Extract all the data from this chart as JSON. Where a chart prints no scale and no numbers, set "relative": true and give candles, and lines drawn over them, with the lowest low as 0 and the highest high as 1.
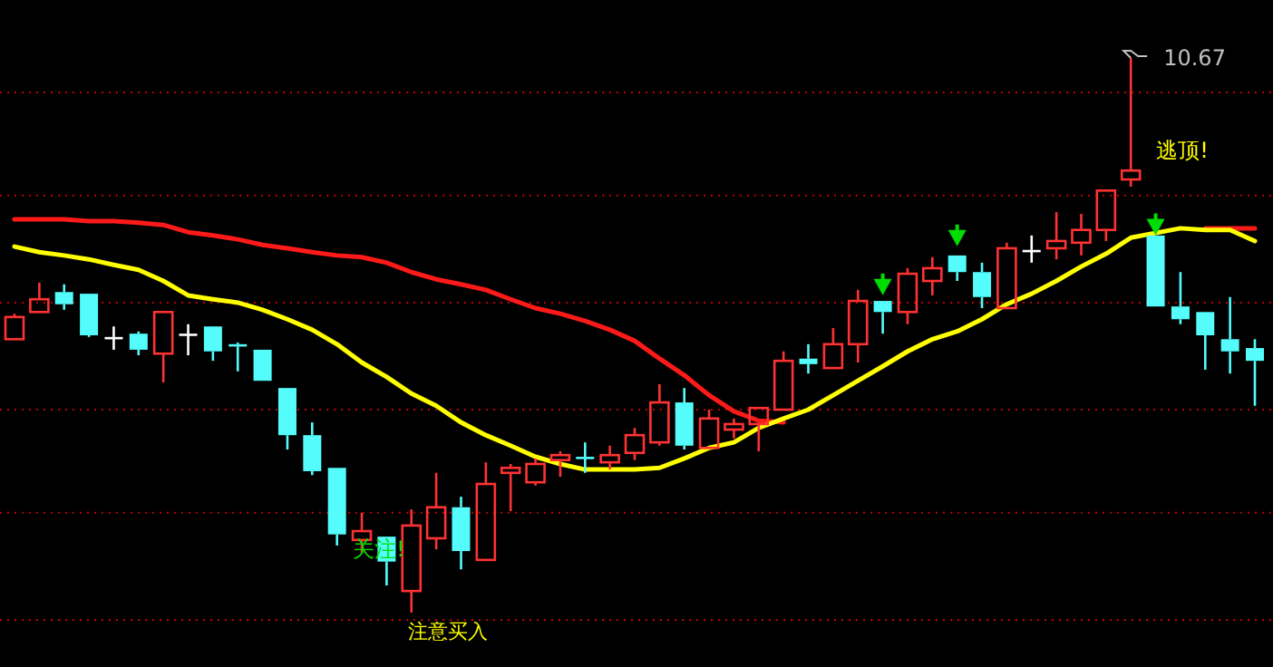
{
  "chart_data": {
    "type": "candlestick",
    "relative": true,
    "categories": [
      null,
      null,
      null,
      null,
      null,
      null,
      null,
      null,
      null,
      null,
      null,
      null,
      null,
      null,
      null,
      null,
      null,
      null,
      null,
      null,
      null,
      null,
      null,
      null,
      null,
      null,
      null,
      null,
      null,
      null,
      null,
      null,
      null,
      null,
      null,
      null,
      null,
      null,
      null,
      null,
      null,
      null,
      null,
      null,
      null,
      null,
      null,
      null,
      null,
      null,
      null
    ],
    "ohlc": [
      [
        0.493,
        0.539,
        0.493,
        0.533
      ],
      [
        0.542,
        0.595,
        0.542,
        0.565
      ],
      [
        0.578,
        0.592,
        0.546,
        0.556
      ],
      [
        0.575,
        0.575,
        0.497,
        0.5
      ],
      [
        0.497,
        0.516,
        0.474,
        0.497
      ],
      [
        0.503,
        0.507,
        0.464,
        0.474
      ],
      [
        0.467,
        0.542,
        0.415,
        0.542
      ],
      [
        0.503,
        0.52,
        0.464,
        0.503
      ],
      [
        0.516,
        0.516,
        0.454,
        0.471
      ],
      [
        0.484,
        0.487,
        0.435,
        0.48
      ],
      [
        0.474,
        0.474,
        0.418,
        0.418
      ],
      [
        0.405,
        0.405,
        0.294,
        0.32
      ],
      [
        0.32,
        0.343,
        0.248,
        0.255
      ],
      [
        0.261,
        0.261,
        0.121,
        0.141
      ],
      [
        0.131,
        0.18,
        0.108,
        0.147
      ],
      [
        0.137,
        0.137,
        0.049,
        0.092
      ],
      [
        0.039,
        0.186,
        0,
        0.157
      ],
      [
        0.134,
        0.252,
        0.114,
        0.19
      ],
      [
        0.19,
        0.209,
        0.078,
        0.111
      ],
      [
        0.095,
        0.271,
        0.095,
        0.232
      ],
      [
        0.252,
        0.268,
        0.183,
        0.261
      ],
      [
        0.235,
        0.278,
        0.229,
        0.268
      ],
      [
        0.275,
        0.291,
        0.245,
        0.284
      ],
      [
        0.281,
        0.307,
        0.252,
        0.279
      ],
      [
        0.271,
        0.301,
        0.258,
        0.284
      ],
      [
        0.288,
        0.333,
        0.275,
        0.32
      ],
      [
        0.307,
        0.412,
        0.301,
        0.379
      ],
      [
        0.379,
        0.405,
        0.294,
        0.301
      ],
      [
        0.297,
        0.366,
        0.297,
        0.35
      ],
      [
        0.33,
        0.35,
        0.314,
        0.34
      ],
      [
        0.34,
        0.369,
        0.291,
        0.369
      ],
      [
        0.366,
        0.471,
        0.366,
        0.454
      ],
      [
        0.458,
        0.484,
        0.431,
        0.448
      ],
      [
        0.441,
        0.513,
        0.441,
        0.484
      ],
      [
        0.484,
        0.582,
        0.451,
        0.562
      ],
      [
        0.562,
        0.562,
        0.503,
        0.542
      ],
      [
        0.542,
        0.621,
        0.52,
        0.611
      ],
      [
        0.598,
        0.641,
        0.572,
        0.621
      ],
      [
        0.644,
        0.644,
        0.598,
        0.614
      ],
      [
        0.614,
        0.631,
        0.549,
        0.569
      ],
      [
        0.549,
        0.667,
        0.549,
        0.657
      ],
      [
        0.654,
        0.68,
        0.631,
        0.654
      ],
      [
        0.657,
        0.722,
        0.637,
        0.67
      ],
      [
        0.667,
        0.719,
        0.644,
        0.69
      ],
      [
        0.69,
        0.761,
        0.67,
        0.761
      ],
      [
        0.781,
        1,
        0.768,
        0.797
      ],
      [
        0.68,
        0.68,
        0.552,
        0.552
      ],
      [
        0.552,
        0.614,
        0.52,
        0.529
      ],
      [
        0.542,
        0.542,
        0.438,
        0.5
      ],
      [
        0.493,
        0.569,
        0.431,
        0.471
      ],
      [
        0.477,
        0.493,
        0.373,
        0.454
      ]
    ],
    "colors": [
      "#ff3232",
      "#ff3232",
      "#54fcfc",
      "#54fcfc",
      "#ffffff",
      "#54fcfc",
      "#ff3232",
      "#ffffff",
      "#54fcfc",
      "#54fcfc",
      "#54fcfc",
      "#54fcfc",
      "#54fcfc",
      "#54fcfc",
      "#ff3232",
      "#54fcfc",
      "#ff3232",
      "#ff3232",
      "#54fcfc",
      "#ff3232",
      "#ff3232",
      "#ff3232",
      "#ff3232",
      "#54fcfc",
      "#ff3232",
      "#ff3232",
      "#ff3232",
      "#54fcfc",
      "#ff3232",
      "#ff3232",
      "#ff3232",
      "#ff3232",
      "#54fcfc",
      "#ff3232",
      "#ff3232",
      "#54fcfc",
      "#ff3232",
      "#ff3232",
      "#54fcfc",
      "#54fcfc",
      "#ff3232",
      "#ffffff",
      "#ff3232",
      "#ff3232",
      "#ff3232",
      "#ff3232",
      "#54fcfc",
      "#54fcfc",
      "#54fcfc",
      "#54fcfc",
      "#54fcfc"
    ],
    "series": [
      {
        "type": "line",
        "color": "#ff1a1a",
        "values": [
          0.709,
          0.709,
          0.709,
          0.706,
          0.706,
          0.703,
          0.699,
          0.686,
          0.68,
          0.673,
          0.663,
          0.657,
          0.65,
          0.644,
          0.641,
          0.631,
          0.614,
          0.601,
          0.592,
          0.582,
          0.565,
          0.549,
          0.539,
          0.526,
          0.51,
          0.49,
          0.458,
          0.428,
          0.392,
          0.363,
          0.346,
          0.343,
          null,
          null,
          null,
          null,
          null,
          null,
          null,
          null,
          null,
          null,
          null,
          null,
          null,
          null,
          null,
          null,
          0.693,
          0.693,
          0.693
        ]
      },
      {
        "type": "line",
        "color": "#ffff00",
        "values": [
          0.66,
          0.65,
          0.644,
          0.637,
          0.627,
          0.618,
          0.598,
          0.572,
          0.565,
          0.559,
          0.546,
          0.529,
          0.51,
          0.484,
          0.451,
          0.425,
          0.395,
          0.373,
          0.343,
          0.32,
          0.301,
          0.281,
          0.268,
          0.258,
          0.258,
          0.258,
          0.261,
          0.278,
          0.297,
          0.307,
          0.333,
          0.35,
          0.366,
          0.392,
          0.418,
          0.444,
          0.471,
          0.493,
          0.507,
          0.529,
          0.556,
          0.575,
          0.598,
          0.624,
          0.647,
          0.676,
          null,
          0.693,
          0.69,
          0.69,
          0.67
        ]
      },
      {
        "type": "scatter",
        "marker": "triangle",
        "color": "#00dd00",
        "values": [
          null,
          null,
          null,
          null,
          null,
          null,
          null,
          null,
          null,
          null,
          null,
          null,
          null,
          null,
          null,
          null,
          null,
          null,
          null,
          null,
          null,
          null,
          null,
          null,
          null,
          null,
          null,
          null,
          null,
          null,
          null,
          null,
          null,
          null,
          null,
          0.592,
          null,
          null,
          0.68,
          null,
          null,
          null,
          null,
          null,
          null,
          null,
          0.7,
          null,
          null,
          null,
          null
        ]
      }
    ],
    "ref_lines": [
      {
        "axis": "y",
        "value": 0.938,
        "color": "#c00000",
        "line_style": "dotted"
      },
      {
        "axis": "y",
        "value": 0.752,
        "color": "#c00000",
        "line_style": "dotted"
      },
      {
        "axis": "y",
        "value": 0.559,
        "color": "#c00000",
        "line_style": "dotted"
      },
      {
        "axis": "y",
        "value": 0.366,
        "color": "#c00000",
        "line_style": "dotted"
      },
      {
        "axis": "y",
        "value": 0.18,
        "color": "#c00000",
        "line_style": "dotted"
      },
      {
        "axis": "y",
        "value": -0.013,
        "color": "#c00000",
        "line_style": "dotted"
      }
    ],
    "annotations": [
      "10.67",
      "逃顶!",
      "关注!",
      "注意买入"
    ]
  }
}
